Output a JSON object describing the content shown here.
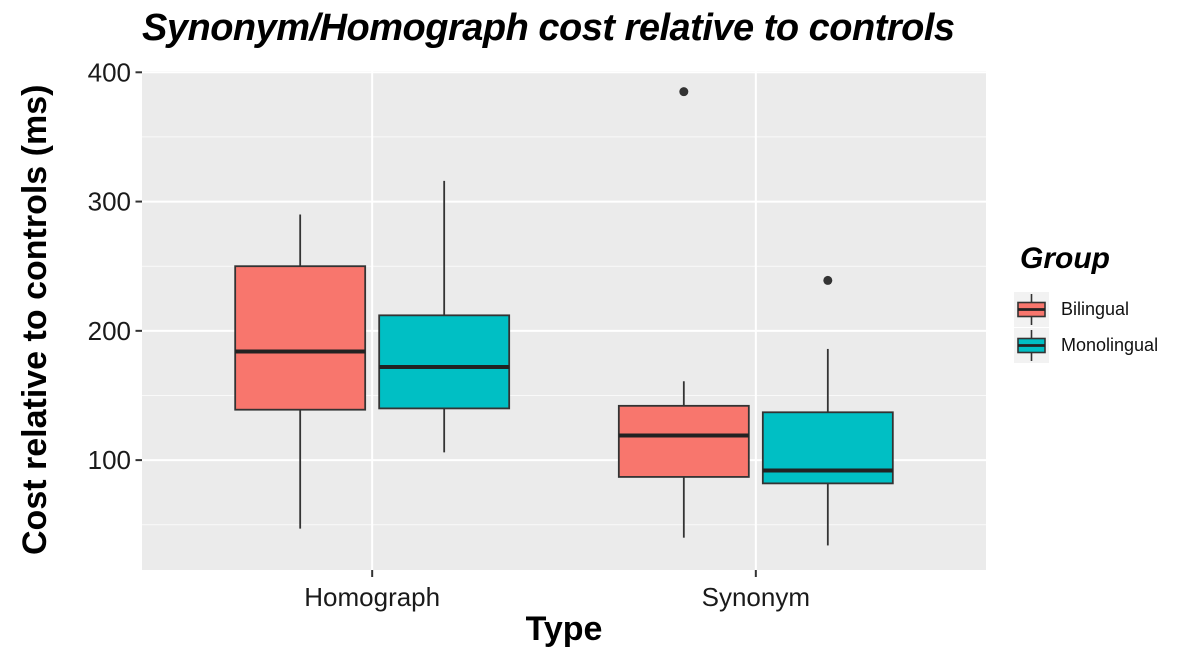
{
  "chart_data": {
    "type": "boxplot",
    "title": "Synonym/Homograph cost relative to controls",
    "xlabel": "Type",
    "ylabel": "Cost relative to controls (ms)",
    "categories": [
      "Homograph",
      "Synonym"
    ],
    "y_ticks": [
      100,
      200,
      300,
      400
    ],
    "y_minor_ticks": [
      50,
      150,
      250,
      350
    ],
    "ylim": [
      15,
      401
    ],
    "grid": true,
    "legend_position": "right",
    "colors": {
      "panel_bg": "#EBEBEB",
      "grid": "#FFFFFF",
      "box_stroke": "#333333",
      "median": "#222222",
      "outlier": "#333333",
      "tick": "#333333",
      "tick_label": "#1A1A1A",
      "legend_key_bg": "#F2F2F2"
    },
    "legend": {
      "title": "Group",
      "entries": [
        {
          "label": "Bilingual",
          "color": "#F8766D"
        },
        {
          "label": "Monolingual",
          "color": "#00BFC4"
        }
      ]
    },
    "series": [
      {
        "name": "Bilingual",
        "color": "#F8766D",
        "boxes": [
          {
            "category": "Homograph",
            "whisker_low": 47,
            "q1": 139,
            "median": 184,
            "q3": 250,
            "whisker_high": 290,
            "outliers": []
          },
          {
            "category": "Synonym",
            "whisker_low": 40,
            "q1": 87,
            "median": 119,
            "q3": 142,
            "whisker_high": 161,
            "outliers": [
              385
            ]
          }
        ]
      },
      {
        "name": "Monolingual",
        "color": "#00BFC4",
        "boxes": [
          {
            "category": "Homograph",
            "whisker_low": 106,
            "q1": 140,
            "median": 172,
            "q3": 212,
            "whisker_high": 316,
            "outliers": []
          },
          {
            "category": "Synonym",
            "whisker_low": 34,
            "q1": 82,
            "median": 92,
            "q3": 137,
            "whisker_high": 186,
            "outliers": [
              239
            ]
          }
        ]
      }
    ]
  }
}
